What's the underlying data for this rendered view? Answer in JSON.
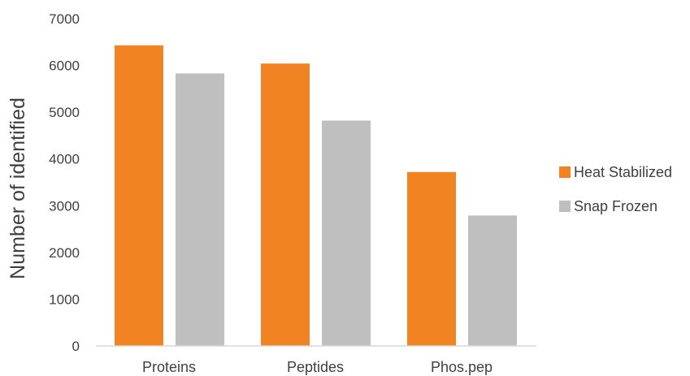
{
  "chart_data": {
    "type": "bar",
    "title": "",
    "xlabel": "",
    "ylabel": "Number of identified",
    "categories": [
      "Proteins",
      "Peptides",
      "Phos.pep"
    ],
    "series": [
      {
        "name": "Heat Stabilized",
        "color": "#F28322",
        "values": [
          6430,
          6040,
          3720
        ]
      },
      {
        "name": "Snap Frozen",
        "color": "#BFBFBF",
        "values": [
          5830,
          4820,
          2790
        ]
      }
    ],
    "ylim": [
      0,
      7000
    ],
    "yticks": [
      0,
      1000,
      2000,
      3000,
      4000,
      5000,
      6000,
      7000
    ],
    "grid": false,
    "legend_position": "right"
  }
}
